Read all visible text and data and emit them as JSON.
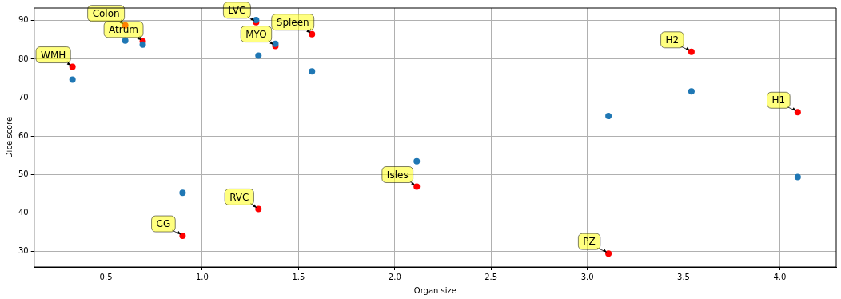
{
  "chart_data": {
    "type": "scatter",
    "xlabel": "Organ size",
    "ylabel": "Dice score",
    "xlim": [
      0.127,
      4.293
    ],
    "ylim": [
      25.9,
      93.3
    ],
    "xticks": [
      {
        "value": 0.5,
        "label": "0.5"
      },
      {
        "value": 1.0,
        "label": "1.0"
      },
      {
        "value": 1.5,
        "label": "1.5"
      },
      {
        "value": 2.0,
        "label": "2.0"
      },
      {
        "value": 2.5,
        "label": "2.5"
      },
      {
        "value": 3.0,
        "label": "3.0"
      },
      {
        "value": 3.5,
        "label": "3.5"
      },
      {
        "value": 4.0,
        "label": "4.0"
      }
    ],
    "yticks": [
      30,
      40,
      50,
      60,
      70,
      80,
      90
    ],
    "grid": true,
    "legend": false,
    "marker": "circle",
    "series": [
      {
        "color": "#1f77b4",
        "x": [
          0.326,
          0.6,
          0.691,
          0.898,
          1.28,
          1.292,
          1.38,
          1.57,
          2.114,
          3.11,
          3.541,
          4.093
        ],
        "values": [
          74.7,
          84.8,
          83.8,
          45.2,
          90.2,
          80.9,
          84.0,
          76.8,
          53.4,
          65.2,
          71.6,
          49.3
        ]
      },
      {
        "color": "#ff0000",
        "x": [
          0.326,
          0.6,
          0.691,
          0.898,
          1.28,
          1.292,
          1.38,
          1.57,
          2.114,
          3.11,
          3.541,
          4.093
        ],
        "values": [
          78.0,
          88.8,
          84.6,
          34.0,
          89.6,
          41.0,
          83.4,
          86.5,
          46.8,
          29.4,
          81.9,
          66.2
        ]
      }
    ],
    "annotations": [
      {
        "text": "WMH",
        "x": 0.326,
        "y": 78.0
      },
      {
        "text": "Colon",
        "x": 0.6,
        "y": 88.8
      },
      {
        "text": "Atrum",
        "x": 0.691,
        "y": 84.6
      },
      {
        "text": "CG",
        "x": 0.898,
        "y": 34.0
      },
      {
        "text": "LVC",
        "x": 1.28,
        "y": 89.6
      },
      {
        "text": "RVC",
        "x": 1.292,
        "y": 41.0
      },
      {
        "text": "MYO",
        "x": 1.38,
        "y": 83.4
      },
      {
        "text": "Spleen",
        "x": 1.57,
        "y": 86.5
      },
      {
        "text": "Isles",
        "x": 2.114,
        "y": 46.8
      },
      {
        "text": "PZ",
        "x": 3.11,
        "y": 29.4
      },
      {
        "text": "H2",
        "x": 3.541,
        "y": 81.9
      },
      {
        "text": "H1",
        "x": 4.093,
        "y": 66.2
      }
    ]
  }
}
